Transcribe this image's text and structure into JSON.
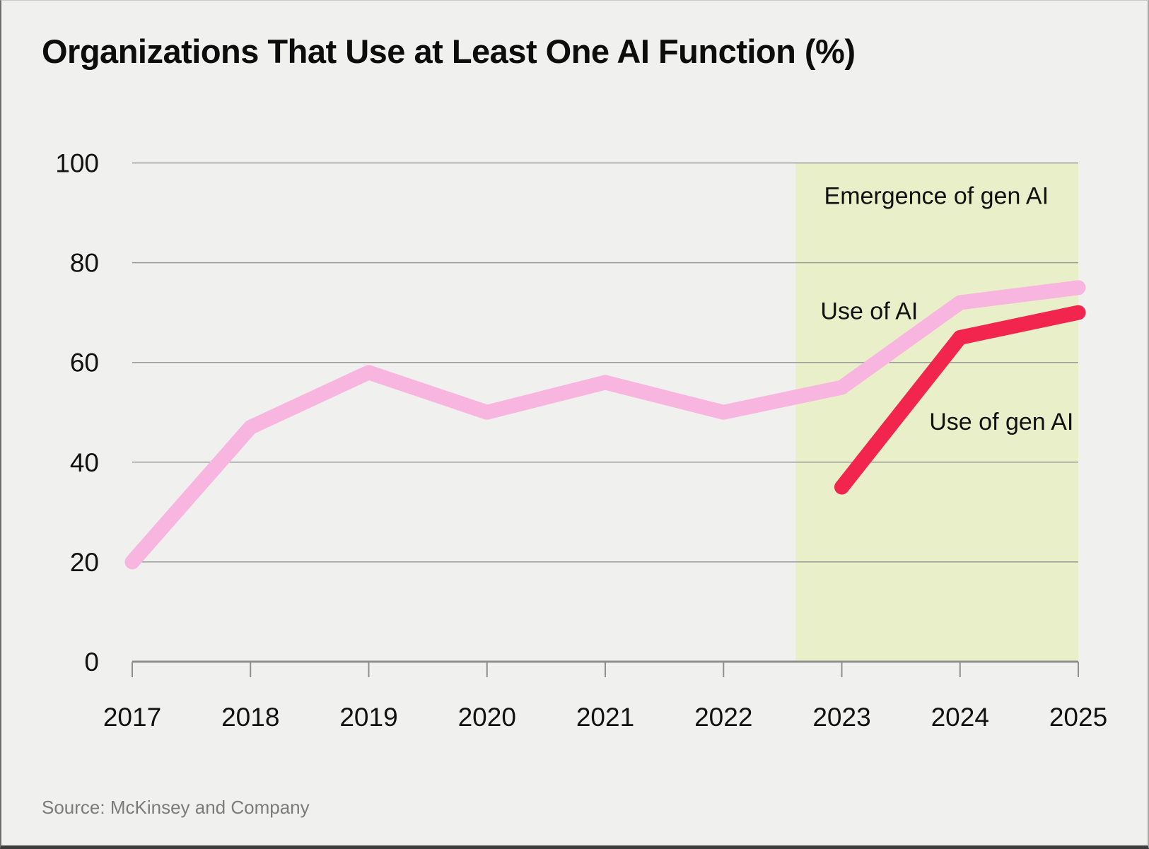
{
  "header": {
    "title": "Organizations That Use at Least One AI Function (%)"
  },
  "footer": {
    "source": "Source: McKinsey and Company"
  },
  "colors": {
    "background": "#f0f0ef",
    "highlight_band": "#e9efc8",
    "use_of_ai_line": "#f8b5df",
    "use_of_gen_ai_line": "#f1254e",
    "gridline": "#9b9b9b",
    "axis": "#8f8f8f",
    "text": "#111111",
    "source_text": "#7b7b7b"
  },
  "chart_data": {
    "type": "line",
    "title": "Organizations That Use at Least One AI Function (%)",
    "categories": [
      2017,
      2018,
      2019,
      2020,
      2021,
      2022,
      2023,
      2024,
      2025
    ],
    "series": [
      {
        "name": "Use of AI",
        "color": "#f8b5df",
        "values": [
          20,
          47,
          58,
          50,
          56,
          50,
          55,
          72,
          75
        ]
      },
      {
        "name": "Use of gen AI",
        "color": "#f1254e",
        "values": [
          null,
          null,
          null,
          null,
          null,
          null,
          35,
          65,
          70
        ]
      }
    ],
    "xlim": [
      2017,
      2025
    ],
    "ylim": [
      0,
      100
    ],
    "yticks": [
      0,
      20,
      40,
      60,
      80,
      100
    ],
    "xticks": [
      2017,
      2018,
      2019,
      2020,
      2021,
      2022,
      2023,
      2024,
      2025
    ],
    "grid": "horizontal",
    "legend_position": "inline-annotations",
    "highlight_band": {
      "label": "Emergence of gen AI",
      "x_start": 2022.61,
      "x_end": 2025,
      "color": "#e9efc8"
    },
    "annotations": [
      {
        "id": "band-label",
        "text": "Emergence of gen AI",
        "x": 2023.8,
        "y": 93.5,
        "anchor": "middle"
      },
      {
        "id": "use-of-ai",
        "text": "Use of AI",
        "x": 2022.82,
        "y": 70.4,
        "anchor": "start"
      },
      {
        "id": "use-of-gen-ai",
        "text": "Use of gen AI",
        "x": 2023.74,
        "y": 48.2,
        "anchor": "start"
      }
    ]
  }
}
